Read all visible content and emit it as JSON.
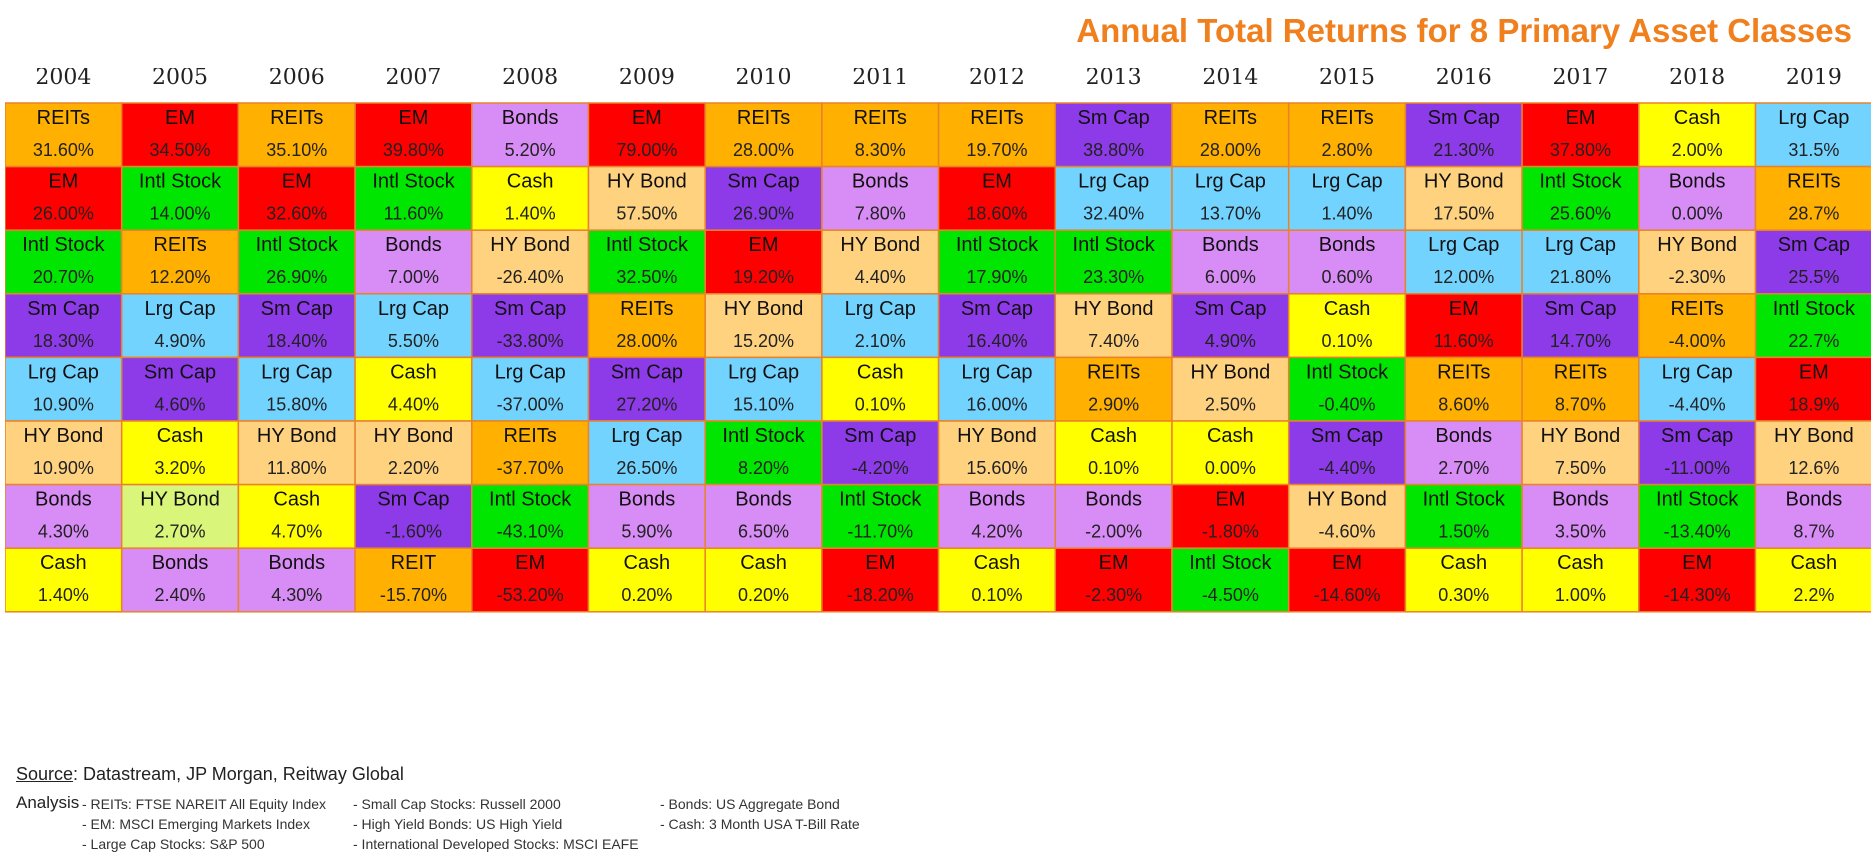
{
  "title": "Annual Total Returns for 8 Primary Asset Classes",
  "colors": {
    "REITs": "#ffb000",
    "REIT": "#ffb000",
    "EM": "#ff0000",
    "Intl Stock": "#00e600",
    "Sm Cap": "#8d3ae8",
    "Lrg Cap": "#73d3ff",
    "HY Bond": "#ffd280",
    "Bonds": "#d88cf5",
    "Cash": "#ffff00",
    "grid_border": "#e8832a",
    "title": "#f07f1d",
    "hy_bond_2005": "#d9f57a"
  },
  "chart_data": {
    "type": "table",
    "years": [
      "2004",
      "2005",
      "2006",
      "2007",
      "2008",
      "2009",
      "2010",
      "2011",
      "2012",
      "2013",
      "2014",
      "2015",
      "2016",
      "2017",
      "2018",
      "2019"
    ],
    "columns": [
      [
        [
          "REITs",
          "31.60%"
        ],
        [
          "EM",
          "26.00%"
        ],
        [
          "Intl Stock",
          "20.70%"
        ],
        [
          "Sm Cap",
          "18.30%"
        ],
        [
          "Lrg Cap",
          "10.90%"
        ],
        [
          "HY Bond",
          "10.90%"
        ],
        [
          "Bonds",
          "4.30%"
        ],
        [
          "Cash",
          "1.40%"
        ]
      ],
      [
        [
          "EM",
          "34.50%"
        ],
        [
          "Intl Stock",
          "14.00%"
        ],
        [
          "REITs",
          "12.20%"
        ],
        [
          "Lrg Cap",
          "4.90%"
        ],
        [
          "Sm Cap",
          "4.60%"
        ],
        [
          "Cash",
          "3.20%"
        ],
        [
          "HY Bond",
          "2.70%"
        ],
        [
          "Bonds",
          "2.40%"
        ]
      ],
      [
        [
          "REITs",
          "35.10%"
        ],
        [
          "EM",
          "32.60%"
        ],
        [
          "Intl Stock",
          "26.90%"
        ],
        [
          "Sm Cap",
          "18.40%"
        ],
        [
          "Lrg Cap",
          "15.80%"
        ],
        [
          "HY Bond",
          "11.80%"
        ],
        [
          "Cash",
          "4.70%"
        ],
        [
          "Bonds",
          "4.30%"
        ]
      ],
      [
        [
          "EM",
          "39.80%"
        ],
        [
          "Intl Stock",
          "11.60%"
        ],
        [
          "Bonds",
          "7.00%"
        ],
        [
          "Lrg Cap",
          "5.50%"
        ],
        [
          "Cash",
          "4.40%"
        ],
        [
          "HY Bond",
          "2.20%"
        ],
        [
          "Sm Cap",
          "-1.60%"
        ],
        [
          "REIT",
          "-15.70%"
        ]
      ],
      [
        [
          "Bonds",
          "5.20%"
        ],
        [
          "Cash",
          "1.40%"
        ],
        [
          "HY Bond",
          "-26.40%"
        ],
        [
          "Sm Cap",
          "-33.80%"
        ],
        [
          "Lrg Cap",
          "-37.00%"
        ],
        [
          "REITs",
          "-37.70%"
        ],
        [
          "Intl Stock",
          "-43.10%"
        ],
        [
          "EM",
          "-53.20%"
        ]
      ],
      [
        [
          "EM",
          "79.00%"
        ],
        [
          "HY Bond",
          "57.50%"
        ],
        [
          "Intl Stock",
          "32.50%"
        ],
        [
          "REITs",
          "28.00%"
        ],
        [
          "Sm Cap",
          "27.20%"
        ],
        [
          "Lrg Cap",
          "26.50%"
        ],
        [
          "Bonds",
          "5.90%"
        ],
        [
          "Cash",
          "0.20%"
        ]
      ],
      [
        [
          "REITs",
          "28.00%"
        ],
        [
          "Sm Cap",
          "26.90%"
        ],
        [
          "EM",
          "19.20%"
        ],
        [
          "HY Bond",
          "15.20%"
        ],
        [
          "Lrg Cap",
          "15.10%"
        ],
        [
          "Intl Stock",
          "8.20%"
        ],
        [
          "Bonds",
          "6.50%"
        ],
        [
          "Cash",
          "0.20%"
        ]
      ],
      [
        [
          "REITs",
          "8.30%"
        ],
        [
          "Bonds",
          "7.80%"
        ],
        [
          "HY Bond",
          "4.40%"
        ],
        [
          "Lrg Cap",
          "2.10%"
        ],
        [
          "Cash",
          "0.10%"
        ],
        [
          "Sm Cap",
          "-4.20%"
        ],
        [
          "Intl Stock",
          "-11.70%"
        ],
        [
          "EM",
          "-18.20%"
        ]
      ],
      [
        [
          "REITs",
          "19.70%"
        ],
        [
          "EM",
          "18.60%"
        ],
        [
          "Intl Stock",
          "17.90%"
        ],
        [
          "Sm Cap",
          "16.40%"
        ],
        [
          "Lrg Cap",
          "16.00%"
        ],
        [
          "HY Bond",
          "15.60%"
        ],
        [
          "Bonds",
          "4.20%"
        ],
        [
          "Cash",
          "0.10%"
        ]
      ],
      [
        [
          "Sm Cap",
          "38.80%"
        ],
        [
          "Lrg Cap",
          "32.40%"
        ],
        [
          "Intl Stock",
          "23.30%"
        ],
        [
          "HY Bond",
          "7.40%"
        ],
        [
          "REITs",
          "2.90%"
        ],
        [
          "Cash",
          "0.10%"
        ],
        [
          "Bonds",
          "-2.00%"
        ],
        [
          "EM",
          "-2.30%"
        ]
      ],
      [
        [
          "REITs",
          "28.00%"
        ],
        [
          "Lrg Cap",
          "13.70%"
        ],
        [
          "Bonds",
          "6.00%"
        ],
        [
          "Sm Cap",
          "4.90%"
        ],
        [
          "HY Bond",
          "2.50%"
        ],
        [
          "Cash",
          "0.00%"
        ],
        [
          "EM",
          "-1.80%"
        ],
        [
          "Intl Stock",
          "-4.50%"
        ]
      ],
      [
        [
          "REITs",
          "2.80%"
        ],
        [
          "Lrg Cap",
          "1.40%"
        ],
        [
          "Bonds",
          "0.60%"
        ],
        [
          "Cash",
          "0.10%"
        ],
        [
          "Intl Stock",
          "-0.40%"
        ],
        [
          "Sm Cap",
          "-4.40%"
        ],
        [
          "HY Bond",
          "-4.60%"
        ],
        [
          "EM",
          "-14.60%"
        ]
      ],
      [
        [
          "Sm Cap",
          "21.30%"
        ],
        [
          "HY Bond",
          "17.50%"
        ],
        [
          "Lrg Cap",
          "12.00%"
        ],
        [
          "EM",
          "11.60%"
        ],
        [
          "REITs",
          "8.60%"
        ],
        [
          "Bonds",
          "2.70%"
        ],
        [
          "Intl Stock",
          "1.50%"
        ],
        [
          "Cash",
          "0.30%"
        ]
      ],
      [
        [
          "EM",
          "37.80%"
        ],
        [
          "Intl Stock",
          "25.60%"
        ],
        [
          "Lrg Cap",
          "21.80%"
        ],
        [
          "Sm Cap",
          "14.70%"
        ],
        [
          "REITs",
          "8.70%"
        ],
        [
          "HY Bond",
          "7.50%"
        ],
        [
          "Bonds",
          "3.50%"
        ],
        [
          "Cash",
          "1.00%"
        ]
      ],
      [
        [
          "Cash",
          "2.00%"
        ],
        [
          "Bonds",
          "0.00%"
        ],
        [
          "HY Bond",
          "-2.30%"
        ],
        [
          "REITs",
          "-4.00%"
        ],
        [
          "Lrg Cap",
          "-4.40%"
        ],
        [
          "Sm Cap",
          "-11.00%"
        ],
        [
          "Intl Stock",
          "-13.40%"
        ],
        [
          "EM",
          "-14.30%"
        ]
      ],
      [
        [
          "Lrg Cap",
          "31.5%"
        ],
        [
          "REITs",
          "28.7%"
        ],
        [
          "Sm Cap",
          "25.5%"
        ],
        [
          "Intl Stock",
          "22.7%"
        ],
        [
          "EM",
          "18.9%"
        ],
        [
          "HY Bond",
          "12.6%"
        ],
        [
          "Bonds",
          "8.7%"
        ],
        [
          "Cash",
          "2.2%"
        ]
      ]
    ]
  },
  "footer": {
    "source_label": "Source",
    "source_text": ": Datastream, JP Morgan,  Reitway Global",
    "analysis": "Analysis",
    "notes_col1": [
      "- REITs: FTSE NAREIT All Equity Index",
      "- EM: MSCI Emerging Markets Index",
      "- Large Cap Stocks: S&P 500"
    ],
    "notes_col2": [
      "- Small Cap Stocks: Russell 2000",
      "- High Yield Bonds: US High Yield",
      "- International Developed Stocks: MSCI EAFE"
    ],
    "notes_col3": [
      "- Bonds: US Aggregate Bond",
      "- Cash: 3 Month USA T-Bill Rate"
    ]
  }
}
